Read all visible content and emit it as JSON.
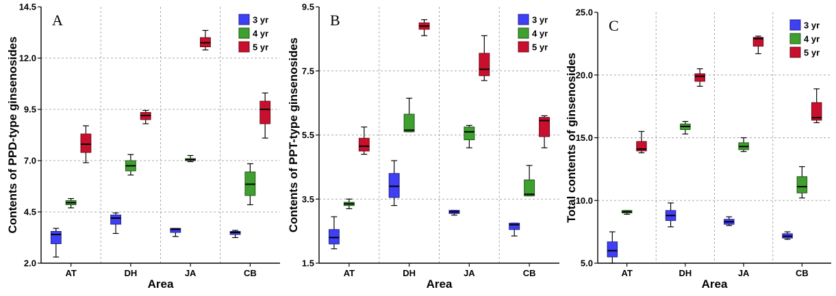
{
  "chart_data": [
    {
      "type": "box",
      "panel_label": "A",
      "ylabel": "Contents of PPD-type ginsenosides",
      "xlabel": "Area",
      "ylim": [
        2.0,
        14.5
      ],
      "yticks": [
        "2.0",
        "4.5",
        "7.0",
        "9.5",
        "12.0",
        "14.5"
      ],
      "categories": [
        "AT",
        "DH",
        "JA",
        "CB"
      ],
      "grid": true,
      "legend_position": "top-right",
      "series": [
        {
          "name": "3 yr",
          "color": "#3f3ff5",
          "boxes": [
            {
              "min": 2.3,
              "q1": 2.95,
              "median": 3.4,
              "q3": 3.55,
              "max": 3.7
            },
            {
              "min": 3.45,
              "q1": 3.9,
              "median": 4.2,
              "q3": 4.35,
              "max": 4.45
            },
            {
              "min": 3.3,
              "q1": 3.5,
              "median": 3.65,
              "q3": 3.7,
              "max": 3.7
            },
            {
              "min": 3.25,
              "q1": 3.4,
              "median": 3.5,
              "q3": 3.55,
              "max": 3.6
            }
          ]
        },
        {
          "name": "4 yr",
          "color": "#3f9f2f",
          "boxes": [
            {
              "min": 4.7,
              "q1": 4.85,
              "median": 4.95,
              "q3": 5.05,
              "max": 5.15
            },
            {
              "min": 6.3,
              "q1": 6.5,
              "median": 6.75,
              "q3": 7.0,
              "max": 7.3
            },
            {
              "min": 6.95,
              "q1": 7.0,
              "median": 7.05,
              "q3": 7.1,
              "max": 7.25
            },
            {
              "min": 4.85,
              "q1": 5.3,
              "median": 5.85,
              "q3": 6.45,
              "max": 6.85
            }
          ]
        },
        {
          "name": "5 yr",
          "color": "#c8102e",
          "boxes": [
            {
              "min": 6.9,
              "q1": 7.4,
              "median": 7.8,
              "q3": 8.3,
              "max": 8.7
            },
            {
              "min": 8.8,
              "q1": 9.0,
              "median": 9.2,
              "q3": 9.35,
              "max": 9.45
            },
            {
              "min": 12.4,
              "q1": 12.55,
              "median": 12.75,
              "q3": 13.0,
              "max": 13.35
            },
            {
              "min": 8.1,
              "q1": 8.8,
              "median": 9.5,
              "q3": 9.9,
              "max": 10.3
            }
          ]
        }
      ]
    },
    {
      "type": "box",
      "panel_label": "B",
      "ylabel": "Contents of PPT-type ginsenosides",
      "xlabel": "Area",
      "ylim": [
        1.5,
        9.5
      ],
      "yticks": [
        "1.5",
        "3.5",
        "5.5",
        "7.5",
        "9.5"
      ],
      "categories": [
        "AT",
        "DH",
        "JA",
        "CB"
      ],
      "grid": true,
      "legend_position": "top-right",
      "series": [
        {
          "name": "3 yr",
          "color": "#3f3ff5",
          "boxes": [
            {
              "min": 1.95,
              "q1": 2.1,
              "median": 2.3,
              "q3": 2.55,
              "max": 2.95
            },
            {
              "min": 3.3,
              "q1": 3.55,
              "median": 3.9,
              "q3": 4.3,
              "max": 4.7
            },
            {
              "min": 3.0,
              "q1": 3.05,
              "median": 3.1,
              "q3": 3.15,
              "max": 3.15
            },
            {
              "min": 2.35,
              "q1": 2.55,
              "median": 2.7,
              "q3": 2.75,
              "max": 2.75
            }
          ]
        },
        {
          "name": "4 yr",
          "color": "#3f9f2f",
          "boxes": [
            {
              "min": 3.2,
              "q1": 3.3,
              "median": 3.35,
              "q3": 3.4,
              "max": 3.5
            },
            {
              "min": 5.6,
              "q1": 5.6,
              "median": 5.65,
              "q3": 6.15,
              "max": 6.65
            },
            {
              "min": 5.1,
              "q1": 5.35,
              "median": 5.6,
              "q3": 5.75,
              "max": 5.8
            },
            {
              "min": 3.6,
              "q1": 3.6,
              "median": 3.65,
              "q3": 4.1,
              "max": 4.55
            }
          ]
        },
        {
          "name": "5 yr",
          "color": "#c8102e",
          "boxes": [
            {
              "min": 4.9,
              "q1": 5.0,
              "median": 5.15,
              "q3": 5.4,
              "max": 5.75
            },
            {
              "min": 8.6,
              "q1": 8.8,
              "median": 8.9,
              "q3": 9.0,
              "max": 9.1
            },
            {
              "min": 7.2,
              "q1": 7.35,
              "median": 7.55,
              "q3": 8.05,
              "max": 8.6
            },
            {
              "min": 5.1,
              "q1": 5.45,
              "median": 5.95,
              "q3": 6.05,
              "max": 6.1
            }
          ]
        }
      ]
    },
    {
      "type": "box",
      "panel_label": "C",
      "ylabel": "Total contents of ginsenosides",
      "xlabel": "Area",
      "ylim": [
        5.0,
        25.0
      ],
      "yticks": [
        "5.0",
        "10.0",
        "15.0",
        "20.0",
        "25.0"
      ],
      "categories": [
        "AT",
        "DH",
        "JA",
        "CB"
      ],
      "grid": true,
      "legend_position": "top-right",
      "series": [
        {
          "name": "3 yr",
          "color": "#3f3ff5",
          "boxes": [
            {
              "min": 5.0,
              "q1": 5.5,
              "median": 6.0,
              "q3": 6.7,
              "max": 7.5
            },
            {
              "min": 7.9,
              "q1": 8.4,
              "median": 8.8,
              "q3": 9.2,
              "max": 9.8
            },
            {
              "min": 8.0,
              "q1": 8.1,
              "median": 8.3,
              "q3": 8.5,
              "max": 8.7
            },
            {
              "min": 6.9,
              "q1": 7.0,
              "median": 7.15,
              "q3": 7.35,
              "max": 7.5
            }
          ]
        },
        {
          "name": "4 yr",
          "color": "#3f9f2f",
          "boxes": [
            {
              "min": 8.9,
              "q1": 9.0,
              "median": 9.1,
              "q3": 9.2,
              "max": 9.2
            },
            {
              "min": 15.3,
              "q1": 15.65,
              "median": 15.9,
              "q3": 16.1,
              "max": 16.3
            },
            {
              "min": 13.9,
              "q1": 14.05,
              "median": 14.3,
              "q3": 14.6,
              "max": 15.0
            },
            {
              "min": 10.2,
              "q1": 10.6,
              "median": 11.1,
              "q3": 11.9,
              "max": 12.7
            }
          ]
        },
        {
          "name": "5 yr",
          "color": "#c8102e",
          "boxes": [
            {
              "min": 13.8,
              "q1": 13.95,
              "median": 14.1,
              "q3": 14.7,
              "max": 15.5
            },
            {
              "min": 19.1,
              "q1": 19.5,
              "median": 19.9,
              "q3": 20.1,
              "max": 20.5
            },
            {
              "min": 21.7,
              "q1": 22.3,
              "median": 22.9,
              "q3": 23.0,
              "max": 23.1
            },
            {
              "min": 16.2,
              "q1": 16.4,
              "median": 16.6,
              "q3": 17.8,
              "max": 18.9
            }
          ]
        }
      ]
    }
  ]
}
